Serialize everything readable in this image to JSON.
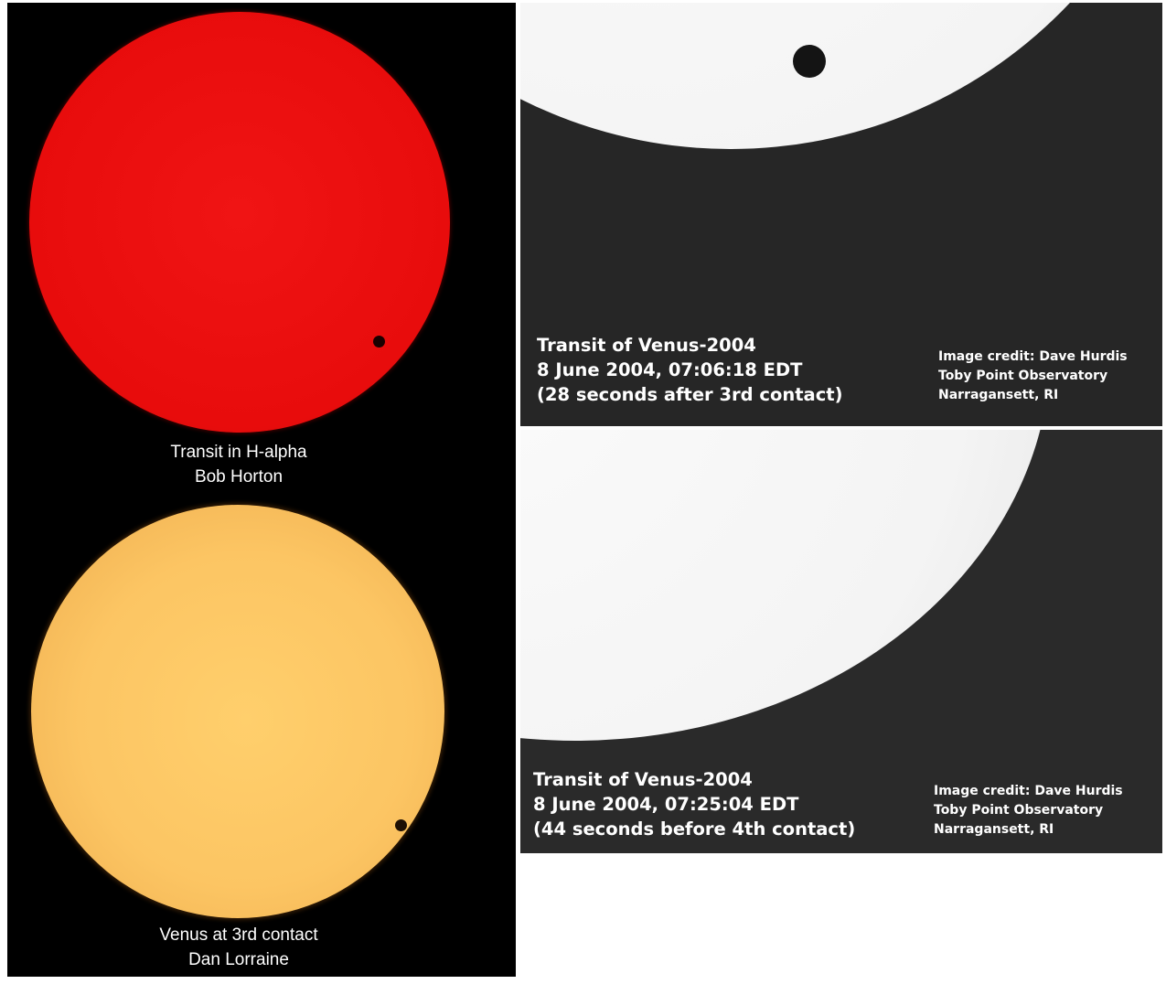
{
  "panels": {
    "h_alpha": {
      "caption_line1": "Transit in H-alpha",
      "caption_line2": "Bob Horton",
      "sun_color": "#e80c0c"
    },
    "third_contact_color": {
      "caption_line1": "Venus at 3rd contact",
      "caption_line2": "Dan Lorraine",
      "sun_color": "#fcc563"
    },
    "bw_top": {
      "title": "Transit of Venus-2004",
      "datetime": "8 June 2004, 07:06:18 EDT",
      "note": "(28 seconds after 3rd contact)",
      "credit_line1": "Image credit: Dave Hurdis",
      "credit_line2": "Toby Point Observatory",
      "credit_line3": "Narragansett, RI"
    },
    "bw_bottom": {
      "title": "Transit of Venus-2004",
      "datetime": "8 June 2004, 07:25:04 EDT",
      "note": "(44 seconds before 4th contact)",
      "credit_line1": "Image credit: Dave Hurdis",
      "credit_line2": "Toby Point Observatory",
      "credit_line3": "Narragansett, RI"
    }
  }
}
